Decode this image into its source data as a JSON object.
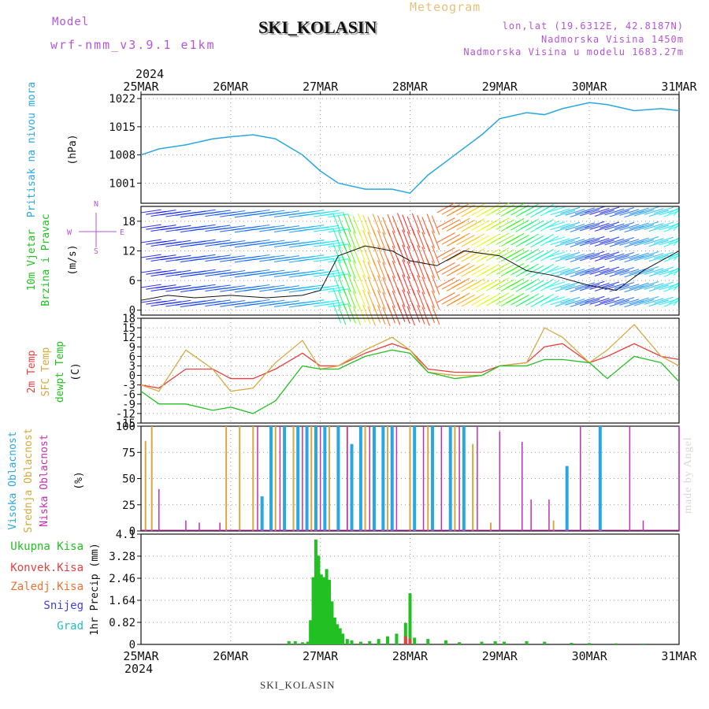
{
  "header": {
    "model_label": "Model",
    "model_value": "wrf-nmm_v3.9.1 e1km",
    "title": "SKI_KOLASIN",
    "subtitle": "Meteogram",
    "lonlat": "lon,lat (19.6312E, 42.8187N)",
    "elevation": "Nadmorska Visina 1450m",
    "elevation_model": "Nadmorska Visina u modelu 1683.27m"
  },
  "footer": {
    "station": "SKI_KOLASIN",
    "watermark": "made by Angel"
  },
  "colors": {
    "pressure": "#2aa7e0",
    "temp2m": "#e84040",
    "sfc": "#d8a840",
    "dewpt": "#22c022",
    "high_cloud": "#2aa7e0",
    "mid_cloud": "#d8a840",
    "low_cloud": "#c030b0",
    "precip_total": "#22c022",
    "precip_conv": "#e84040",
    "grid": "#999999"
  },
  "chart_data": [
    {
      "type": "line",
      "name": "pressure",
      "ylabel": [
        "Pritisak na nivou mora",
        "(hPa)"
      ],
      "ylim": [
        996,
        1023
      ],
      "yticks": [
        1001,
        1008,
        1015,
        1022
      ],
      "x_axis": {
        "year": "2024",
        "ticks": [
          "25MAR",
          "26MAR",
          "27MAR",
          "28MAR",
          "29MAR",
          "30MAR",
          "31MAR"
        ]
      },
      "x": [
        0,
        0.2,
        0.5,
        0.8,
        1.0,
        1.25,
        1.5,
        1.8,
        2.0,
        2.2,
        2.5,
        2.8,
        3.0,
        3.2,
        3.5,
        3.8,
        4.0,
        4.3,
        4.5,
        4.7,
        5.0,
        5.2,
        5.5,
        5.8,
        6.0
      ],
      "series": [
        {
          "values": [
            1008,
            1009.5,
            1010.5,
            1012,
            1012.5,
            1013,
            1012,
            1008,
            1004,
            1001,
            999.5,
            999.5,
            998.5,
            1003,
            1008,
            1013,
            1017,
            1018.5,
            1018,
            1019.5,
            1021,
            1020.5,
            1019,
            1019.5,
            1019
          ]
        }
      ]
    },
    {
      "type": "line",
      "name": "wind",
      "ylabel": [
        "10m Vjetar",
        "Brzina i Pravac",
        "(m/s)"
      ],
      "direction_key": [
        "N",
        "S",
        "W",
        "E"
      ],
      "ylim": [
        -1,
        21
      ],
      "yticks": [
        0,
        6,
        12,
        18
      ],
      "x": [
        0,
        0.3,
        0.6,
        1.0,
        1.4,
        1.8,
        2.0,
        2.2,
        2.5,
        2.8,
        3.0,
        3.3,
        3.6,
        4.0,
        4.3,
        4.6,
        5.0,
        5.3,
        5.6,
        6.0
      ],
      "series": [
        {
          "name": "speed",
          "values": [
            2,
            3,
            2.5,
            3,
            2.5,
            3,
            4,
            11,
            13,
            12,
            10,
            9,
            12,
            11,
            8,
            7,
            5,
            4,
            8,
            12
          ]
        }
      ]
    },
    {
      "type": "line",
      "name": "temperature",
      "ylabel": [
        "2m Temp",
        "SFC Temp",
        "dewpt Temp",
        "(C)"
      ],
      "ylim": [
        -15,
        18
      ],
      "yticks": [
        -15,
        -12,
        -9,
        -6,
        -3,
        0,
        3,
        6,
        9,
        12,
        15,
        18
      ],
      "x": [
        0,
        0.2,
        0.5,
        0.8,
        1.0,
        1.25,
        1.5,
        1.8,
        2.0,
        2.2,
        2.5,
        2.8,
        3.0,
        3.2,
        3.5,
        3.8,
        4.0,
        4.3,
        4.5,
        4.7,
        5.0,
        5.2,
        5.5,
        5.8,
        6.0
      ],
      "series": [
        {
          "name": "2m Temp",
          "values": [
            -3,
            -4,
            2,
            2,
            -1,
            -1,
            2,
            7,
            3,
            3,
            7,
            10,
            8,
            2,
            1,
            1,
            3,
            4,
            9,
            10,
            4,
            6,
            10,
            6,
            5
          ]
        },
        {
          "name": "SFC Temp",
          "values": [
            -3,
            -5,
            8,
            2,
            -5,
            -4,
            4,
            11,
            2,
            3,
            8,
            12,
            8,
            1,
            0,
            0,
            3,
            4,
            15,
            12,
            4,
            8,
            16,
            6,
            3
          ]
        },
        {
          "name": "dewpt Temp",
          "values": [
            -5,
            -9,
            -9,
            -11,
            -10,
            -12,
            -8,
            3,
            2,
            2,
            6,
            8,
            7,
            1,
            -1,
            0,
            3,
            3,
            5,
            5,
            4,
            -1,
            6,
            4,
            -2
          ]
        }
      ]
    },
    {
      "type": "bar",
      "name": "cloud_cover",
      "ylabel": [
        "Visoka Oblacnost",
        "Srednja Oblacnost",
        "Niska Oblacnost",
        "(%)"
      ],
      "ylim": [
        0,
        100
      ],
      "yticks": [
        0,
        25,
        50,
        75,
        100
      ],
      "series": [
        {
          "name": "Visoka Oblacnost",
          "x": [
            1.35,
            1.45,
            1.6,
            1.75,
            1.85,
            1.95,
            2.05,
            2.2,
            2.35,
            2.45,
            2.6,
            2.7,
            2.8,
            3.05,
            3.25,
            3.45,
            3.6,
            4.75,
            5.12
          ],
          "values": [
            33,
            100,
            100,
            100,
            100,
            100,
            100,
            100,
            83,
            100,
            100,
            100,
            100,
            100,
            100,
            100,
            100,
            62,
            100
          ]
        },
        {
          "name": "Srednja Oblacnost",
          "x": [
            0.05,
            0.12,
            0.95,
            1.1,
            1.25,
            1.5,
            1.7,
            1.9,
            2.1,
            2.3,
            2.5,
            2.75,
            3.0,
            3.2,
            3.5,
            3.7,
            3.9,
            4.6
          ],
          "values": [
            86,
            100,
            100,
            100,
            100,
            100,
            100,
            100,
            100,
            100,
            100,
            100,
            100,
            100,
            100,
            83,
            8,
            10
          ]
        },
        {
          "name": "Niska Oblacnost",
          "x": [
            0.2,
            0.5,
            0.65,
            0.88,
            1.3,
            1.55,
            1.8,
            2.0,
            2.3,
            2.55,
            2.85,
            3.15,
            3.35,
            3.55,
            3.75,
            4.0,
            4.25,
            4.35,
            4.55,
            4.9,
            5.45,
            5.6,
            6.0
          ],
          "values": [
            40,
            10,
            8,
            8,
            100,
            100,
            100,
            100,
            100,
            100,
            100,
            100,
            100,
            100,
            100,
            95,
            85,
            30,
            30,
            100,
            100,
            10,
            100
          ]
        }
      ]
    },
    {
      "type": "bar",
      "name": "precipitation",
      "ylabel": [
        "Ukupna Kisa",
        "Konvek.Kisa",
        "Zaledj.Kisa",
        "Snijeg",
        "Grad",
        "1hr Precip (mm)"
      ],
      "ylim": [
        0,
        4.1
      ],
      "yticks": [
        0,
        0.82,
        1.64,
        2.46,
        3.28,
        4.1
      ],
      "x_axis": {
        "year": "2024",
        "ticks": [
          "25MAR",
          "26MAR",
          "27MAR",
          "28MAR",
          "29MAR",
          "30MAR",
          "31MAR"
        ]
      },
      "series": [
        {
          "name": "Ukupna Kisa",
          "x": [
            1.65,
            1.72,
            1.8,
            1.86,
            1.89,
            1.92,
            1.95,
            1.98,
            2.01,
            2.04,
            2.07,
            2.1,
            2.13,
            2.16,
            2.19,
            2.22,
            2.25,
            2.3,
            2.35,
            2.45,
            2.55,
            2.65,
            2.75,
            2.85,
            2.95,
            3.0,
            3.05,
            3.2,
            3.4,
            3.55,
            3.8,
            3.95,
            4.05,
            4.3,
            4.5,
            4.8,
            5.0,
            5.3,
            5.6
          ],
          "values": [
            0.12,
            0.12,
            0.08,
            0.1,
            0.9,
            2.5,
            3.9,
            3.3,
            2.6,
            2.5,
            2.8,
            2.4,
            1.6,
            1.0,
            0.75,
            0.6,
            0.4,
            0.2,
            0.15,
            0.1,
            0.12,
            0.2,
            0.3,
            0.4,
            0.8,
            1.9,
            0.25,
            0.2,
            0.15,
            0.08,
            0.1,
            0.12,
            0.1,
            0.12,
            0.1,
            0.06,
            0.05,
            0.04,
            0.03
          ]
        },
        {
          "name": "Konvek.Kisa",
          "x": [
            2.95,
            3.0
          ],
          "values": [
            0.3,
            0.2
          ]
        }
      ]
    }
  ]
}
